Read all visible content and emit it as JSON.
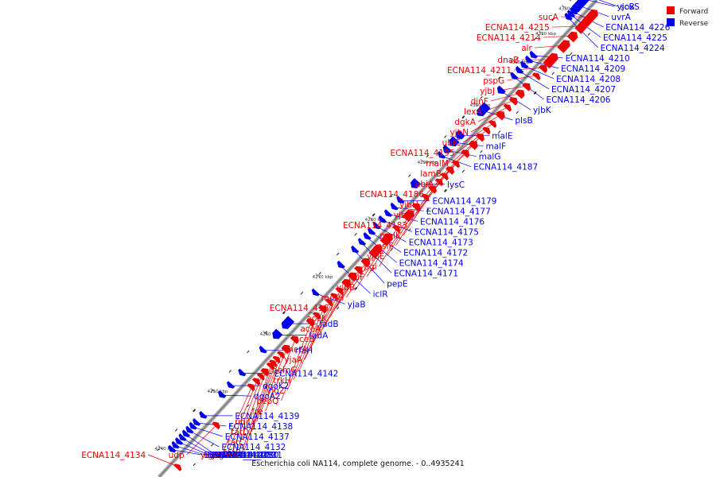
{
  "caption": "Escherichia coli NA114, complete genome. - 0..4935241",
  "legend": [
    {
      "label": "Forward",
      "color": "#ee0000"
    },
    {
      "label": "Reverse",
      "color": "#0000ee"
    }
  ],
  "colors": {
    "forward": "#ee0000",
    "reverse": "#0000ee",
    "backbone": "#888888"
  },
  "ticks": [
    {
      "label": "4240 kbp",
      "pos": 0.035
    },
    {
      "label": "4250 kbp",
      "pos": 0.155
    },
    {
      "label": "4260 kbp",
      "pos": 0.275
    },
    {
      "label": "4270 kbp",
      "pos": 0.395
    },
    {
      "label": "4280 kbp",
      "pos": 0.515
    },
    {
      "label": "4290 kbp",
      "pos": 0.635
    },
    {
      "label": "4300 kbp",
      "pos": 0.755
    },
    {
      "label": "4310 kbp",
      "pos": 0.845
    },
    {
      "label": "4320 kbp",
      "pos": 0.905
    },
    {
      "label": "4330 kbp",
      "pos": 0.958
    },
    {
      "label": "4340 kbp",
      "pos": 0.99
    }
  ],
  "forward_genes": [
    {
      "label": "sucA",
      "pos": 0.975,
      "len": 0.028
    },
    {
      "label": "ECNA114_4215",
      "pos": 0.955,
      "len": 0.02
    },
    {
      "label": "ECNA114_4214",
      "pos": 0.935,
      "len": 0.015
    },
    {
      "label": "alr",
      "pos": 0.915,
      "len": 0.02
    },
    {
      "label": "dnaB",
      "pos": 0.885,
      "len": 0.025
    },
    {
      "label": "ECNA114_4211",
      "pos": 0.868,
      "len": 0.01
    },
    {
      "label": "pspG",
      "pos": 0.852,
      "len": 0.008
    },
    {
      "label": "yjbJ",
      "pos": 0.83,
      "len": 0.01
    },
    {
      "label": "dinF",
      "pos": 0.815,
      "len": 0.012
    },
    {
      "label": "lexA",
      "pos": 0.8,
      "len": 0.01
    },
    {
      "label": "dgkA",
      "pos": 0.786,
      "len": 0.008
    },
    {
      "label": "yjbN",
      "pos": 0.77,
      "len": 0.012
    },
    {
      "label": "ubiC",
      "pos": 0.752,
      "len": 0.008
    },
    {
      "label": "ECNA114_4195",
      "pos": 0.738,
      "len": 0.008
    },
    {
      "label": "malM",
      "pos": 0.724,
      "len": 0.01
    },
    {
      "label": "lamB",
      "pos": 0.708,
      "len": 0.012
    },
    {
      "label": "ubiA",
      "pos": 0.69,
      "len": 0.01
    },
    {
      "label": "ECNA114_4186",
      "pos": 0.668,
      "len": 0.008
    },
    {
      "label": "yjbH",
      "pos": 0.655,
      "len": 0.01
    },
    {
      "label": "yjbG",
      "pos": 0.642,
      "len": 0.008
    },
    {
      "label": "ECNA114_4183",
      "pos": 0.63,
      "len": 0.008
    },
    {
      "label": "malK",
      "pos": 0.615,
      "len": 0.01
    },
    {
      "label": "psiF",
      "pos": 0.598,
      "len": 0.008
    },
    {
      "label": "yjbE",
      "pos": 0.578,
      "len": 0.01
    },
    {
      "label": "pgi",
      "pos": 0.56,
      "len": 0.018
    },
    {
      "label": "rluF",
      "pos": 0.532,
      "len": 0.008
    },
    {
      "label": "yjbB",
      "pos": 0.51,
      "len": 0.02
    },
    {
      "label": "metH",
      "pos": 0.485,
      "len": 0.022
    },
    {
      "label": "ECNA114_4167",
      "pos": 0.462,
      "len": 0.012
    },
    {
      "label": "aceK",
      "pos": 0.446,
      "len": 0.01
    },
    {
      "label": "aceA",
      "pos": 0.432,
      "len": 0.012
    },
    {
      "label": "aceB",
      "pos": 0.418,
      "len": 0.012
    },
    {
      "label": "metA",
      "pos": 0.402,
      "len": 0.008
    },
    {
      "label": "yjaA",
      "pos": 0.39,
      "len": 0.006
    },
    {
      "label": "hemG",
      "pos": 0.378,
      "len": 0.006
    },
    {
      "label": "trkH",
      "pos": 0.364,
      "len": 0.01
    },
    {
      "label": "yigZ",
      "pos": 0.35,
      "len": 0.008
    },
    {
      "label": "pepQ",
      "pos": 0.336,
      "len": 0.01
    },
    {
      "label": "fre",
      "pos": 0.3,
      "len": 0.01
    },
    {
      "label": "ubiD",
      "pos": 0.28,
      "len": 0.012
    },
    {
      "label": "tatD",
      "pos": 0.268,
      "len": 0.006
    },
    {
      "label": "tatC",
      "pos": 0.258,
      "len": 0.006
    },
    {
      "label": "tatB",
      "pos": 0.25,
      "len": 0.004
    },
    {
      "label": "tatA",
      "pos": 0.244,
      "len": 0.004
    },
    {
      "label": "ubiB",
      "pos": 0.232,
      "len": 0.01
    },
    {
      "label": "yigP",
      "pos": 0.222,
      "len": 0.006
    },
    {
      "label": "ubiE",
      "pos": 0.212,
      "len": 0.008
    },
    {
      "label": "yigN",
      "pos": 0.2,
      "len": 0.008
    },
    {
      "label": "udp",
      "pos": 0.12,
      "len": 0.008
    },
    {
      "label": "ECNA114_4134",
      "pos": 0.032,
      "len": 0.005
    }
  ],
  "reverse_genes": [
    {
      "label": "soxS",
      "pos": 0.995,
      "len": 0.004
    },
    {
      "label": "yjcB",
      "pos": 0.988,
      "len": 0.004
    },
    {
      "label": "uvrA",
      "pos": 0.975,
      "len": 0.026
    },
    {
      "label": "ECNA114_4226",
      "pos": 0.962,
      "len": 0.004
    },
    {
      "label": "ECNA114_4225",
      "pos": 0.956,
      "len": 0.004
    },
    {
      "label": "ECNA114_4224",
      "pos": 0.95,
      "len": 0.004
    },
    {
      "label": "ECNA114_4210",
      "pos": 0.87,
      "len": 0.008
    },
    {
      "label": "ECNA114_4209",
      "pos": 0.86,
      "len": 0.008
    },
    {
      "label": "ECNA114_4208",
      "pos": 0.849,
      "len": 0.008
    },
    {
      "label": "ECNA114_4207",
      "pos": 0.838,
      "len": 0.008
    },
    {
      "label": "ECNA114_4206",
      "pos": 0.826,
      "len": 0.006
    },
    {
      "label": "yjbK",
      "pos": 0.796,
      "len": 0.01
    },
    {
      "label": "plsB",
      "pos": 0.755,
      "len": 0.022
    },
    {
      "label": "malE",
      "pos": 0.702,
      "len": 0.012
    },
    {
      "label": "malF",
      "pos": 0.688,
      "len": 0.014
    },
    {
      "label": "malG",
      "pos": 0.672,
      "len": 0.01
    },
    {
      "label": "ECNA114_4187",
      "pos": 0.66,
      "len": 0.006
    },
    {
      "label": "lysC",
      "pos": 0.6,
      "len": 0.014
    },
    {
      "label": "ECNA114_4179",
      "pos": 0.566,
      "len": 0.006
    },
    {
      "label": "ECNA114_4177",
      "pos": 0.552,
      "len": 0.006
    },
    {
      "label": "ECNA114_4176",
      "pos": 0.538,
      "len": 0.006
    },
    {
      "label": "ECNA114_4175",
      "pos": 0.525,
      "len": 0.006
    },
    {
      "label": "ECNA114_4173",
      "pos": 0.512,
      "len": 0.006
    },
    {
      "label": "ECNA114_4172",
      "pos": 0.5,
      "len": 0.006
    },
    {
      "label": "ECNA114_4174",
      "pos": 0.49,
      "len": 0.006
    },
    {
      "label": "ECNA114_4171",
      "pos": 0.478,
      "len": 0.006
    },
    {
      "label": "pepE",
      "pos": 0.462,
      "len": 0.006
    },
    {
      "label": "iclR",
      "pos": 0.43,
      "len": 0.008
    },
    {
      "label": "yjaB",
      "pos": 0.372,
      "len": 0.006
    },
    {
      "label": "fadB",
      "pos": 0.308,
      "len": 0.02
    },
    {
      "label": "fadA",
      "pos": 0.284,
      "len": 0.014
    },
    {
      "label": "rfaH",
      "pos": 0.252,
      "len": 0.006
    },
    {
      "label": "ECNA114_4142",
      "pos": 0.204,
      "len": 0.006
    },
    {
      "label": "dgoK2",
      "pos": 0.178,
      "len": 0.006
    },
    {
      "label": "dgoA2",
      "pos": 0.158,
      "len": 0.008
    },
    {
      "label": "ECNA114_4139",
      "pos": 0.115,
      "len": 0.005
    },
    {
      "label": "ECNA114_4138",
      "pos": 0.1,
      "len": 0.003
    },
    {
      "label": "ECNA114_4137",
      "pos": 0.092,
      "len": 0.003
    },
    {
      "label": "ECNA114_4132",
      "pos": 0.084,
      "len": 0.003
    },
    {
      "label": "ECNA114_4131",
      "pos": 0.076,
      "len": 0.003
    },
    {
      "label": "ECNA114_4130",
      "pos": 0.068,
      "len": 0.003
    },
    {
      "label": "ECNA114_4129",
      "pos": 0.06,
      "len": 0.003
    },
    {
      "label": "ECNA114_4128",
      "pos": 0.052,
      "len": 0.003
    },
    {
      "label": "ECNA114_4127",
      "pos": 0.044,
      "len": 0.003
    }
  ]
}
